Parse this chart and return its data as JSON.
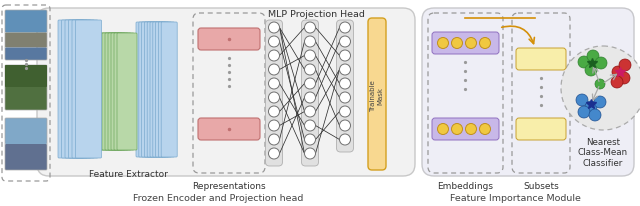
{
  "frozen_label": "Frozen Encoder and Projection head",
  "feature_label": "Feature Importance Module",
  "feature_extractor_label": "Feature Extractor",
  "mlp_label": "MLP Projection Head",
  "representations_label": "Representations",
  "trainable_mask_label": "Trainable\nMask",
  "embeddings_label": "Embeddings",
  "subsets_label": "Subsets",
  "ncm_label": "Nearest\nClass-Mean\nClassifier",
  "bg_color": "#ffffff",
  "blue_layer": "#b8d4ed",
  "blue_edge": "#7aaace",
  "green_layer": "#b8d8a8",
  "green_edge": "#70a860",
  "red_bar": "#e8a8a8",
  "red_bar_edge": "#c07070",
  "purple_bar": "#c8b8e8",
  "purple_bar_edge": "#9070c0",
  "yellow_circle": "#f0c840",
  "yellow_circle_edge": "#c09020",
  "yellow_mask": "#f8d890",
  "yellow_mask_edge": "#d4a020",
  "yellow_subset": "#f8eeaa",
  "yellow_subset_edge": "#c8a030",
  "orange_arrow": "#d4900a",
  "gray_ncm_bg": "#e8e8e8",
  "ncm_green": "#4aaa44",
  "ncm_blue": "#4488cc",
  "ncm_red": "#cc3333",
  "frozen_box": "#f2f2f2",
  "frozen_box_edge": "#c8c8c8",
  "feature_box": "#eeeef6",
  "feature_box_edge": "#c8c8cc"
}
